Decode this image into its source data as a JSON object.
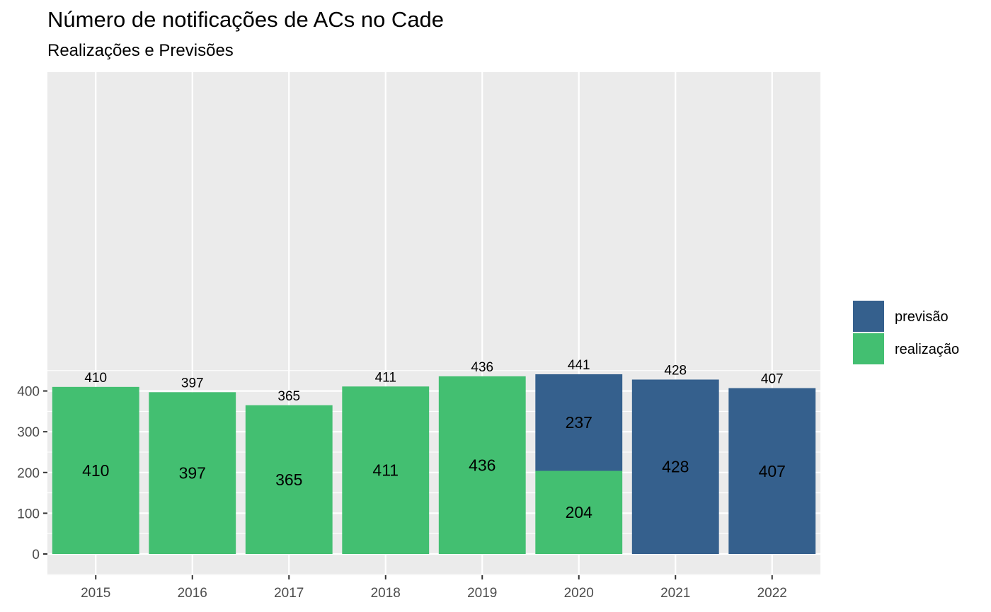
{
  "chart_data": {
    "type": "bar",
    "stacked": true,
    "title": "Número de notificações de ACs no Cade",
    "subtitle": "Realizações e Previsões",
    "xlabel": "",
    "ylabel": "",
    "categories": [
      "2015",
      "2016",
      "2017",
      "2018",
      "2019",
      "2020",
      "2021",
      "2022"
    ],
    "series": [
      {
        "name": "realização",
        "color": "#43BF71",
        "values": [
          410,
          397,
          365,
          411,
          436,
          204,
          0,
          0
        ]
      },
      {
        "name": "previsão",
        "color": "#35608D",
        "values": [
          0,
          0,
          0,
          0,
          0,
          237,
          428,
          407
        ]
      }
    ],
    "totals": [
      410,
      397,
      365,
      411,
      436,
      441,
      428,
      407
    ],
    "ylim": [
      0,
      460
    ],
    "yticks": [
      0,
      100,
      200,
      300,
      400
    ],
    "grid": true,
    "legend": {
      "position": "right",
      "entries": [
        {
          "label": "previsão",
          "color": "#35608D"
        },
        {
          "label": "realização",
          "color": "#43BF71"
        }
      ]
    },
    "panel_background": "#EBEBEB"
  }
}
